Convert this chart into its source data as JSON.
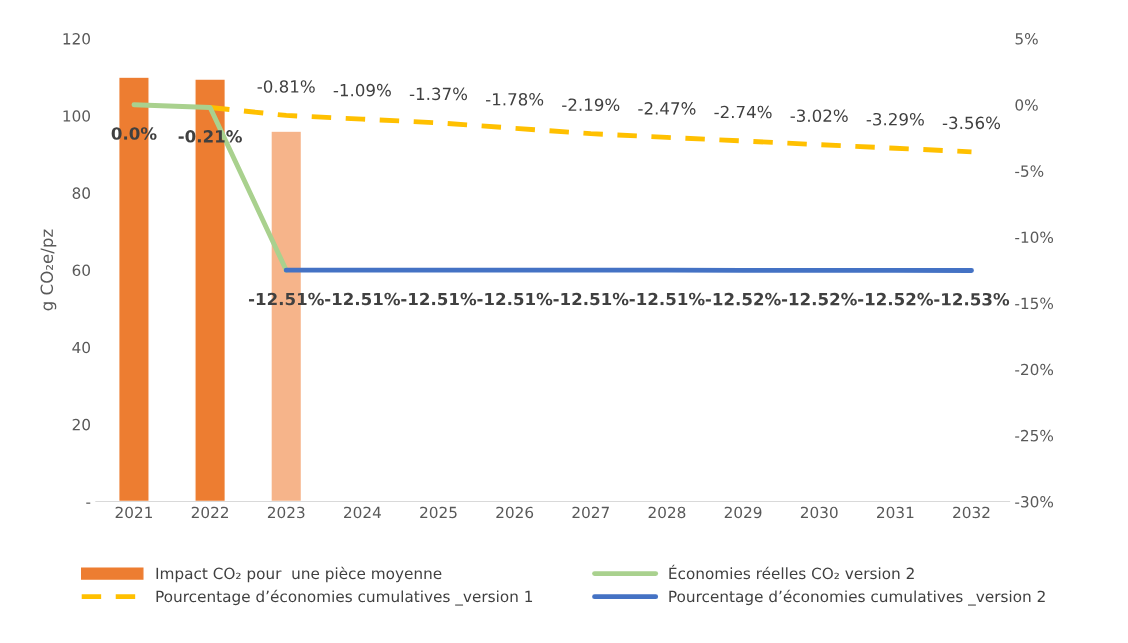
{
  "chart_data": {
    "type": "bar",
    "ylabel": "g CO₂e/pz",
    "categories": [
      "2021",
      "2022",
      "2023",
      "2024",
      "2025",
      "2026",
      "2027",
      "2028",
      "2029",
      "2030",
      "2031",
      "2032"
    ],
    "series": [
      {
        "name": "Impact CO₂ pour  une pièce moyenne",
        "colors": [
          "#ed7d31",
          "#ed7d31",
          "#f6b48a",
          null,
          null,
          null,
          null,
          null,
          null,
          null,
          null,
          null
        ],
        "values": [
          110,
          109.5,
          96,
          null,
          null,
          null,
          null,
          null,
          null,
          null,
          null,
          null
        ]
      },
      {
        "name": "Pourcentage d’économies cumulatives _version 1",
        "type": "line",
        "axis": "y2",
        "color": "#ffc000",
        "line_style": "dashed",
        "values": [
          null,
          -0.21,
          -0.81,
          -1.09,
          -1.37,
          -1.78,
          -2.19,
          -2.47,
          -2.74,
          -3.02,
          -3.29,
          -3.56
        ],
        "value_labels": [
          null,
          null,
          "-0.81%",
          "-1.09%",
          "-1.37%",
          "-1.78%",
          "-2.19%",
          "-2.47%",
          "-2.74%",
          "-3.02%",
          "-3.29%",
          "-3.56%"
        ]
      },
      {
        "name": "Économies réelles CO₂ version 2",
        "type": "line",
        "axis": "y2",
        "color": "#a9d18e",
        "line_style": "solid",
        "values": [
          0,
          -0.21,
          -12.51,
          null,
          null,
          null,
          null,
          null,
          null,
          null,
          null,
          null
        ],
        "value_labels": [
          "0.0%",
          "-0.21%",
          null,
          null,
          null,
          null,
          null,
          null,
          null,
          null,
          null,
          null
        ]
      },
      {
        "name": "Pourcentage d’économies cumulatives _version 2",
        "type": "line",
        "axis": "y2",
        "color": "#4472c4",
        "line_style": "solid",
        "values": [
          null,
          null,
          -12.51,
          -12.51,
          -12.51,
          -12.51,
          -12.51,
          -12.51,
          -12.52,
          -12.52,
          -12.52,
          -12.53
        ],
        "value_labels": [
          null,
          null,
          "-12.51%",
          "-12.51%",
          "-12.51%",
          "-12.51%",
          "-12.51%",
          "-12.51%",
          "-12.52%",
          "-12.52%",
          "-12.52%",
          "-12.53%"
        ]
      }
    ],
    "ylim": [
      0,
      120
    ],
    "yticks": [
      {
        "value": 0,
        "label": "-"
      },
      20,
      40,
      60,
      80,
      100,
      120
    ],
    "y2lim": [
      -30,
      5
    ],
    "y2ticks": [
      {
        "value": -30,
        "label": "-30%"
      },
      {
        "value": -25,
        "label": "-25%"
      },
      {
        "value": -20,
        "label": "-20%"
      },
      {
        "value": -15,
        "label": "-15%"
      },
      {
        "value": -10,
        "label": "-10%"
      },
      {
        "value": -5,
        "label": "-5%"
      },
      {
        "value": 0,
        "label": "0%"
      },
      {
        "value": 5,
        "label": "5%"
      }
    ],
    "grid": false,
    "legend": "bottom"
  }
}
